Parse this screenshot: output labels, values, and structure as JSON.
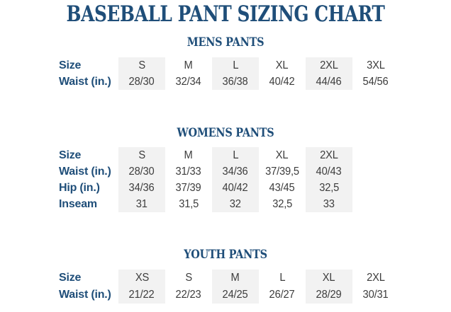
{
  "page": {
    "title": "BASEBALL PANT SIZING CHART"
  },
  "colors": {
    "accent_navy": "#1f4e79",
    "value_text": "#3d3d3d",
    "column_stripe": "#f2f2f2",
    "background": "#ffffff"
  },
  "sections": [
    {
      "heading": "MENS PANTS",
      "rows": [
        {
          "label": "Size",
          "values": [
            "S",
            "M",
            "L",
            "XL",
            "2XL",
            "3XL"
          ]
        },
        {
          "label": "Waist (in.)",
          "values": [
            "28/30",
            "32/34",
            "36/38",
            "40/42",
            "44/46",
            "54/56"
          ]
        }
      ]
    },
    {
      "heading": "WOMENS PANTS",
      "rows": [
        {
          "label": "Size",
          "values": [
            "S",
            "M",
            "L",
            "XL",
            "2XL"
          ]
        },
        {
          "label": "Waist (in.)",
          "values": [
            "28/30",
            "31/33",
            "34/36",
            "37/39,5",
            "40/43"
          ]
        },
        {
          "label": "Hip (in.)",
          "values": [
            "34/36",
            "37/39",
            "40/42",
            "43/45",
            "32,5"
          ]
        },
        {
          "label": "Inseam",
          "values": [
            "31",
            "31,5",
            "32",
            "32,5",
            "33"
          ]
        }
      ]
    },
    {
      "heading": "YOUTH PANTS",
      "rows": [
        {
          "label": "Size",
          "values": [
            "XS",
            "S",
            "M",
            "L",
            "XL",
            "2XL"
          ]
        },
        {
          "label": "Waist (in.)",
          "values": [
            "21/22",
            "22/23",
            "24/25",
            "26/27",
            "28/29",
            "30/31"
          ]
        }
      ]
    }
  ]
}
